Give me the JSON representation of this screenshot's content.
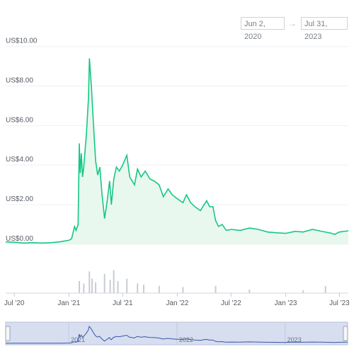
{
  "date_range": {
    "from": "Jun 2, 2020",
    "arrow": "→",
    "to": "Jul 31, 2023"
  },
  "colors": {
    "line": "#16c784",
    "fill": "#e9f8ef",
    "volume": "#c8ccd6",
    "navigator_fill": "#d6def0",
    "navigator_line": "#3a56a8"
  },
  "chart_data": {
    "type": "line",
    "title": "",
    "xlabel": "",
    "ylabel": "",
    "y_ticks": [
      "US$0.00",
      "US$2.00",
      "US$4.00",
      "US$6.00",
      "US$8.00",
      "US$10.00"
    ],
    "y_tick_values": [
      0,
      2,
      4,
      6,
      8,
      10
    ],
    "ylim": [
      0,
      10.2
    ],
    "x_ticks": [
      "Jul '20",
      "Jan '21",
      "Jul '21",
      "Jan '22",
      "Jul '22",
      "Jan '23",
      "Jul '23"
    ],
    "x_tick_dates": [
      "2020-07-01",
      "2021-01-01",
      "2021-07-01",
      "2022-01-01",
      "2022-07-01",
      "2023-01-01",
      "2023-07-01"
    ],
    "xlim": [
      "2020-06-02",
      "2023-07-31"
    ],
    "grid": true,
    "series": [
      {
        "points": [
          [
            "2020-06-02",
            0.12
          ],
          [
            "2020-07-01",
            0.1
          ],
          [
            "2020-08-01",
            0.06
          ],
          [
            "2020-09-01",
            0.08
          ],
          [
            "2020-10-01",
            0.06
          ],
          [
            "2020-11-01",
            0.08
          ],
          [
            "2020-12-01",
            0.12
          ],
          [
            "2021-01-01",
            0.2
          ],
          [
            "2021-01-10",
            0.28
          ],
          [
            "2021-01-20",
            0.9
          ],
          [
            "2021-01-25",
            0.7
          ],
          [
            "2021-02-01",
            1.0
          ],
          [
            "2021-02-05",
            5.1
          ],
          [
            "2021-02-08",
            3.6
          ],
          [
            "2021-02-12",
            4.6
          ],
          [
            "2021-02-16",
            3.4
          ],
          [
            "2021-02-20",
            3.9
          ],
          [
            "2021-03-01",
            5.6
          ],
          [
            "2021-03-08",
            7.4
          ],
          [
            "2021-03-11",
            9.4
          ],
          [
            "2021-03-14",
            8.8
          ],
          [
            "2021-03-18",
            7.9
          ],
          [
            "2021-03-25",
            6.0
          ],
          [
            "2021-04-01",
            4.2
          ],
          [
            "2021-04-08",
            3.5
          ],
          [
            "2021-04-15",
            3.9
          ],
          [
            "2021-04-22",
            2.6
          ],
          [
            "2021-05-01",
            1.3
          ],
          [
            "2021-05-10",
            2.2
          ],
          [
            "2021-05-18",
            3.2
          ],
          [
            "2021-05-24",
            2.0
          ],
          [
            "2021-06-01",
            3.3
          ],
          [
            "2021-06-10",
            3.9
          ],
          [
            "2021-06-20",
            3.7
          ],
          [
            "2021-07-01",
            4.0
          ],
          [
            "2021-07-15",
            4.5
          ],
          [
            "2021-07-25",
            3.4
          ],
          [
            "2021-08-10",
            3.0
          ],
          [
            "2021-08-20",
            3.8
          ],
          [
            "2021-09-01",
            3.4
          ],
          [
            "2021-09-15",
            3.7
          ],
          [
            "2021-10-01",
            3.3
          ],
          [
            "2021-10-15",
            3.2
          ],
          [
            "2021-11-01",
            3.0
          ],
          [
            "2021-11-15",
            2.4
          ],
          [
            "2021-12-01",
            2.8
          ],
          [
            "2021-12-15",
            2.5
          ],
          [
            "2022-01-01",
            2.3
          ],
          [
            "2022-01-20",
            2.1
          ],
          [
            "2022-02-01",
            2.5
          ],
          [
            "2022-02-15",
            2.1
          ],
          [
            "2022-03-01",
            1.9
          ],
          [
            "2022-03-20",
            1.7
          ],
          [
            "2022-04-01",
            2.0
          ],
          [
            "2022-04-10",
            2.2
          ],
          [
            "2022-04-20",
            1.9
          ],
          [
            "2022-05-01",
            1.9
          ],
          [
            "2022-05-10",
            1.2
          ],
          [
            "2022-05-20",
            0.9
          ],
          [
            "2022-06-01",
            1.0
          ],
          [
            "2022-06-15",
            0.7
          ],
          [
            "2022-07-01",
            0.75
          ],
          [
            "2022-08-01",
            0.7
          ],
          [
            "2022-09-01",
            0.82
          ],
          [
            "2022-10-01",
            0.75
          ],
          [
            "2022-11-01",
            0.62
          ],
          [
            "2022-12-01",
            0.58
          ],
          [
            "2023-01-01",
            0.55
          ],
          [
            "2023-02-01",
            0.65
          ],
          [
            "2023-03-01",
            0.62
          ],
          [
            "2023-04-01",
            0.75
          ],
          [
            "2023-05-01",
            0.66
          ],
          [
            "2023-06-01",
            0.57
          ],
          [
            "2023-06-15",
            0.5
          ],
          [
            "2023-07-01",
            0.62
          ],
          [
            "2023-07-31",
            0.68
          ]
        ]
      }
    ],
    "volume_spikes": [
      [
        "2021-02-05",
        0.5
      ],
      [
        "2021-02-20",
        0.4
      ],
      [
        "2021-03-11",
        0.9
      ],
      [
        "2021-03-20",
        0.6
      ],
      [
        "2021-04-01",
        0.45
      ],
      [
        "2021-05-01",
        0.8
      ],
      [
        "2021-05-20",
        0.55
      ],
      [
        "2021-06-01",
        0.95
      ],
      [
        "2021-06-15",
        0.5
      ],
      [
        "2021-07-15",
        0.6
      ],
      [
        "2021-08-20",
        0.4
      ],
      [
        "2021-09-10",
        0.35
      ],
      [
        "2021-11-01",
        0.3
      ],
      [
        "2022-01-20",
        0.25
      ],
      [
        "2022-05-10",
        0.3
      ],
      [
        "2022-09-01",
        0.15
      ],
      [
        "2023-03-01",
        0.12
      ],
      [
        "2023-05-15",
        0.3
      ]
    ],
    "navigator": {
      "labels": [
        "2021",
        "2022",
        "2023"
      ],
      "label_dates": [
        "2021-01-01",
        "2022-01-01",
        "2023-01-01"
      ]
    }
  }
}
